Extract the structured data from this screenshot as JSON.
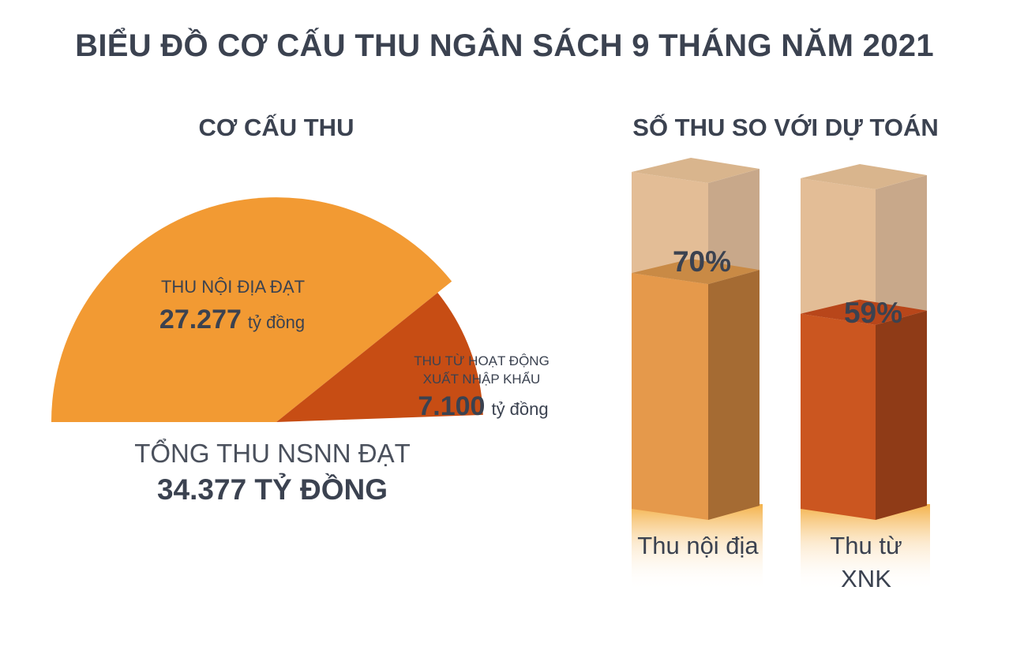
{
  "title": "BIỂU ĐỒ CƠ CẤU THU NGÂN SÁCH 9 THÁNG NĂM 2021",
  "left_panel": {
    "subtitle": "CƠ CẤU THU",
    "total_label": "TỔNG THU NSNN ĐẠT",
    "total_value": "34.377 TỶ ĐỒNG"
  },
  "right_panel": {
    "subtitle": "SỐ THU SO VỚI DỰ TOÁN"
  },
  "colors": {
    "domestic": "#f29a33",
    "import_export": "#c74d14",
    "bar_domestic_front": "#e5994b",
    "bar_domestic_side": "#a56b33",
    "bar_xnk_front": "#cb5620",
    "bar_xnk_side": "#8f3b17",
    "bar_ghost_front": "#e3bd96",
    "bar_ghost_side": "#c8a88a",
    "text": "#3b4250"
  },
  "chart_data": [
    {
      "type": "pie",
      "total": 34377,
      "unit": "tỷ đồng",
      "slices": [
        {
          "label_line1": "THU NỘI ĐỊA ĐẠT",
          "label_line2": "",
          "value": 27277,
          "value_text": "27.277",
          "unit_text": "tỷ đồng",
          "color": "#f29a33"
        },
        {
          "label_line1": "THU TỪ HOẠT ĐỘNG",
          "label_line2": "XUẤT NHẬP KHẨU",
          "value": 7100,
          "value_text": "7.100",
          "unit_text": "tỷ đồng",
          "color": "#c74d14"
        }
      ]
    },
    {
      "type": "bar",
      "categories": [
        "Thu nội địa",
        "Thu từ XNK"
      ],
      "values": [
        70,
        59
      ],
      "value_labels": [
        "70%",
        "59%"
      ],
      "ylim": [
        0,
        100
      ],
      "unit": "%"
    }
  ]
}
